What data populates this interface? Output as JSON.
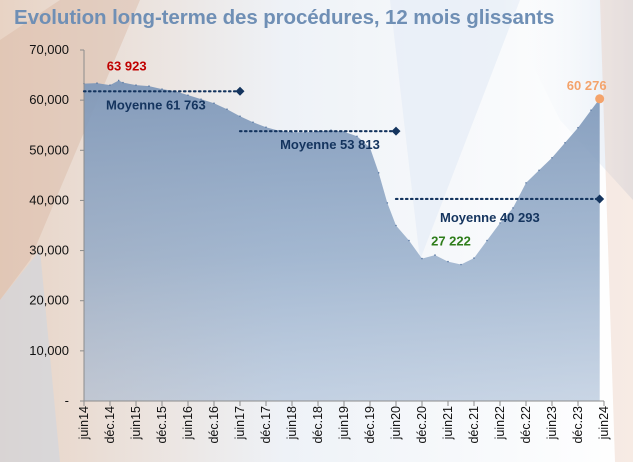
{
  "title": "Evolution long-terme des procédures, 12 mois glissants",
  "colors": {
    "title": "#6f8fb5",
    "area": "#5f7da6",
    "mean_line": "#14345e",
    "peak_label": "#c00000",
    "trough_label": "#2e7d1a",
    "last_label": "#f4a36b",
    "last_marker": "#f4a36b"
  },
  "chart_data": {
    "type": "area",
    "title": "Evolution long-terme des procédures, 12 mois glissants",
    "xlabel": "",
    "ylabel": "",
    "ylim": [
      0,
      70000
    ],
    "grid": false,
    "y_tick_labels": [
      "-",
      "10,000",
      "20,000",
      "30,000",
      "40,000",
      "50,000",
      "60,000",
      "70,000"
    ],
    "y_tick_values": [
      0,
      10000,
      20000,
      30000,
      40000,
      50000,
      60000,
      70000
    ],
    "x_tick_labels": [
      "juin14",
      "déc.14",
      "juin15",
      "déc.15",
      "juin16",
      "déc.16",
      "juin17",
      "déc.17",
      "juin18",
      "déc.18",
      "juin19",
      "déc.19",
      "juin20",
      "déc.20",
      "juin21",
      "déc.21",
      "juin22",
      "déc.22",
      "juin23",
      "déc.23",
      "juin24"
    ],
    "series": [
      {
        "x": [
          "2014-06",
          "2014-09",
          "2014-12",
          "2015-02",
          "2015-03",
          "2015-06",
          "2015-09",
          "2015-12",
          "2016-03",
          "2016-06",
          "2016-09",
          "2016-12",
          "2017-03",
          "2017-06",
          "2017-09",
          "2017-12",
          "2018-03",
          "2018-06",
          "2018-09",
          "2018-12",
          "2019-03",
          "2019-06",
          "2019-09",
          "2019-12",
          "2020-02",
          "2020-04",
          "2020-06",
          "2020-09",
          "2020-12",
          "2021-03",
          "2021-06",
          "2021-09",
          "2021-12",
          "2022-03",
          "2022-06",
          "2022-09",
          "2022-12",
          "2023-03",
          "2023-06",
          "2023-09",
          "2023-12",
          "2024-03",
          "2024-05"
        ],
        "y": [
          63300,
          63400,
          63000,
          63923,
          63500,
          63000,
          62800,
          62200,
          61800,
          61000,
          60200,
          59400,
          58200,
          56800,
          55600,
          54600,
          53900,
          53600,
          53600,
          53700,
          54000,
          53700,
          52800,
          50500,
          45500,
          39500,
          35000,
          32000,
          28400,
          29100,
          27800,
          27222,
          28500,
          32000,
          35500,
          38500,
          43500,
          46000,
          48500,
          51500,
          54500,
          58000,
          60276
        ]
      }
    ],
    "mean_lines": [
      {
        "label": "Moyenne 61 763",
        "value": 61763,
        "from": "2014-06",
        "to": "2017-06"
      },
      {
        "label": "Moyenne 53 813",
        "value": 53813,
        "from": "2017-06",
        "to": "2020-06"
      },
      {
        "label": "Moyenne 40 293",
        "value": 40293,
        "from": "2020-06",
        "to": "2024-05"
      }
    ],
    "annotations": [
      {
        "text": "63 923",
        "x": "2015-02",
        "y": 63923,
        "role": "peak"
      },
      {
        "text": "27 222",
        "x": "2021-09",
        "y": 27222,
        "role": "trough"
      },
      {
        "text": "60 276",
        "x": "2024-05",
        "y": 60276,
        "role": "last"
      }
    ]
  }
}
